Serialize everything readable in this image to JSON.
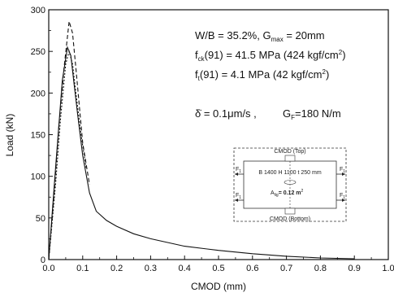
{
  "chart_data": {
    "type": "line",
    "xlabel": "CMOD (mm)",
    "ylabel": "Load (kN)",
    "xlim": [
      0,
      1.0
    ],
    "ylim": [
      0,
      300
    ],
    "x_ticks": [
      "0.0",
      "0.1",
      "0.2",
      "0.3",
      "0.4",
      "0.5",
      "0.6",
      "0.7",
      "0.8",
      "0.9",
      "1.0"
    ],
    "y_ticks": [
      "0",
      "50",
      "100",
      "150",
      "200",
      "250",
      "300"
    ],
    "grid": false,
    "series": [
      {
        "line_style": "solid",
        "x": [
          0.0,
          0.02,
          0.04,
          0.055,
          0.065,
          0.075,
          0.085,
          0.1,
          0.12,
          0.14,
          0.17,
          0.2,
          0.25,
          0.3,
          0.4,
          0.5,
          0.6,
          0.7,
          0.8,
          0.9
        ],
        "y": [
          0,
          110,
          215,
          255,
          245,
          210,
          175,
          125,
          80,
          58,
          47,
          40,
          31,
          25,
          16,
          11,
          7,
          4,
          2,
          1
        ]
      },
      {
        "line_style": "dashed",
        "x": [
          0.0,
          0.015,
          0.03,
          0.045,
          0.06,
          0.07,
          0.08,
          0.09,
          0.1,
          0.12
        ],
        "y": [
          0,
          75,
          160,
          230,
          286,
          272,
          230,
          185,
          140,
          90
        ]
      },
      {
        "line_style": "dotted",
        "x": [
          0.0,
          0.02,
          0.035,
          0.05,
          0.06,
          0.07,
          0.08,
          0.095,
          0.11
        ],
        "y": [
          0,
          90,
          170,
          235,
          250,
          235,
          200,
          150,
          110
        ]
      }
    ],
    "annotations": {
      "line1": "W/B = 35.2%, G",
      "line1_sub": "max",
      "line1_end": " = 20mm",
      "line2_pre": "f",
      "line2_sub": "ck",
      "line2_end": "(91) = 41.5 MPa (424 kgf/cm",
      "line2_sup": "2",
      "line2_close": ")",
      "line3_pre": "f",
      "line3_sub": "t",
      "line3_end": "(91) = 4.1 MPa (42 kgf/cm",
      "line3_sup": "2",
      "line3_close": ")",
      "rate": "δ̇ = 0.1μm/s ,",
      "gf_pre": "G",
      "gf_sub": "F",
      "gf_end": "=180 N/m"
    },
    "inset": {
      "top_label": "CMOD (Top)",
      "bottom_label": "CMOD (Bottom)",
      "dims": "B 1400 H 1100 t 250 mm",
      "area_pre": "A",
      "area_sub": "lig",
      "area_end": "= 0.12 m",
      "area_sup": "2",
      "force_left_1": "F",
      "force_left_2": "F",
      "force_right_1": "F",
      "force_right_2": "F",
      "force_sub": "1"
    }
  }
}
